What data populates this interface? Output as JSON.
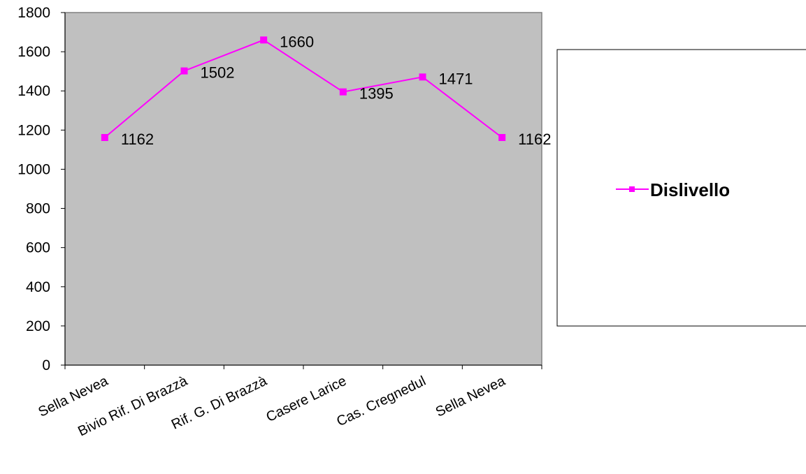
{
  "chart_data": {
    "type": "line",
    "categories": [
      "Sella Nevea",
      "Bivio Rif. Di Brazzà",
      "Rif. G. Di Brazzà",
      "Casere Larice",
      "Cas. Cregnedul",
      "Sella Nevea"
    ],
    "series": [
      {
        "name": "Dislivello",
        "values": [
          1162,
          1502,
          1660,
          1395,
          1471,
          1162
        ],
        "color": "#ff00ff"
      }
    ],
    "yticks": [
      "0",
      "200",
      "400",
      "600",
      "800",
      "1000",
      "1200",
      "1400",
      "1600",
      "1800"
    ],
    "ylim": [
      0,
      1800
    ],
    "plot_background": "#c0c0c0",
    "grid": false,
    "legend": "right",
    "marker": "square"
  }
}
